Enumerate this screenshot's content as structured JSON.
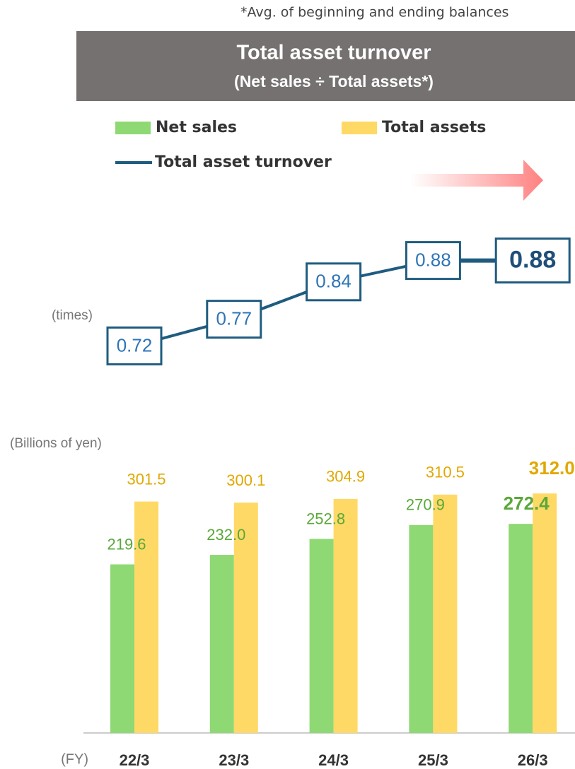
{
  "chart_data": {
    "type": "bar",
    "note": "*Avg. of beginning and ending balances",
    "title": "Total asset turnover",
    "subtitle": "(Net sales ÷ Total assets*)",
    "y2_label": "(times)",
    "y_label": "(Billions of yen)",
    "x_label": "(FY)",
    "categories": [
      "22/3",
      "23/3",
      "24/3",
      "25/3",
      "26/3"
    ],
    "ylim": [
      0,
      320
    ],
    "y2lim": [
      0.6,
      1.0
    ],
    "series": [
      {
        "name": "Net sales",
        "color": "#8ed973",
        "values": [
          219.6,
          232.0,
          252.8,
          270.9,
          272.4
        ],
        "value_labels": [
          "219.6",
          "232.0",
          "252.8",
          "270.9",
          "272.4"
        ],
        "label_color": "#5aa83a"
      },
      {
        "name": "Total assets",
        "color": "#ffd966",
        "values": [
          301.5,
          300.1,
          304.9,
          310.5,
          312.0
        ],
        "value_labels": [
          "301.5",
          "300.1",
          "304.9",
          "310.5",
          "312.0"
        ],
        "label_color": "#e0a800"
      },
      {
        "name": "Total asset turnover",
        "color": "#1f5c7f",
        "axis": "y2",
        "values": [
          0.72,
          0.77,
          0.84,
          0.88,
          0.88
        ],
        "label_color": "#2e75b6"
      }
    ]
  }
}
